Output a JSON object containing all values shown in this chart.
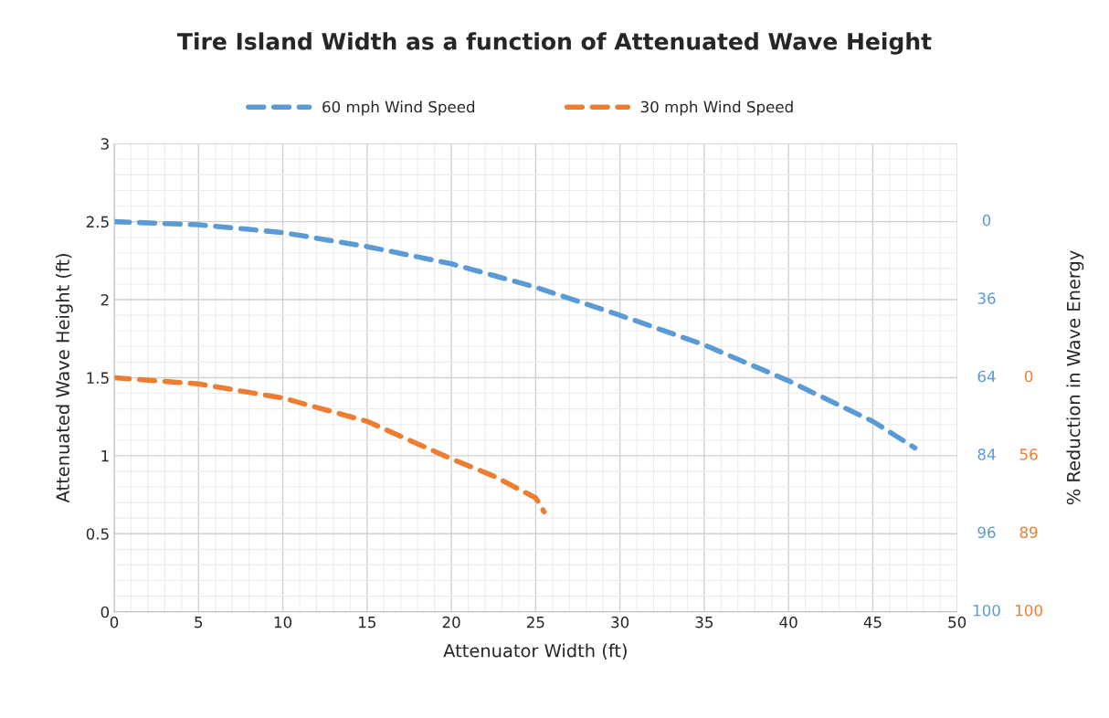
{
  "chart_data": {
    "type": "line",
    "title": "Tire Island Width as a function of Attenuated Wave Height",
    "xlabel": "Attenuator Width (ft)",
    "ylabel": "Attenuated Wave Height (ft)",
    "xlim": [
      0,
      50
    ],
    "xticks": [
      0,
      5,
      10,
      15,
      20,
      25,
      30,
      35,
      40,
      45,
      50
    ],
    "ylim": [
      0,
      3
    ],
    "yticks": [
      0,
      0.5,
      1,
      1.5,
      2,
      2.5,
      3
    ],
    "annotations": [
      "% Reduction in Wave Energy",
      "0",
      "36",
      "64",
      "84",
      "96",
      "100",
      "0",
      "56",
      "89",
      "100"
    ],
    "grid": true,
    "legend": "top",
    "line_style": "dashed",
    "marker": "none",
    "series": [
      {
        "name": "60 mph Wind Speed",
        "color": "#5b9bd5",
        "x": [
          0,
          5,
          10,
          15,
          20,
          25,
          30,
          35,
          40,
          45,
          47.5
        ],
        "values": [
          2.5,
          2.48,
          2.43,
          2.34,
          2.23,
          2.08,
          1.9,
          1.71,
          1.48,
          1.22,
          1.05
        ]
      },
      {
        "name": "30 mph Wind Speed",
        "color": "#ed7d31",
        "x": [
          0,
          5,
          10,
          15,
          20,
          22.5,
          25,
          25.5
        ],
        "values": [
          1.5,
          1.46,
          1.37,
          1.22,
          0.98,
          0.87,
          0.73,
          0.64
        ]
      }
    ]
  }
}
